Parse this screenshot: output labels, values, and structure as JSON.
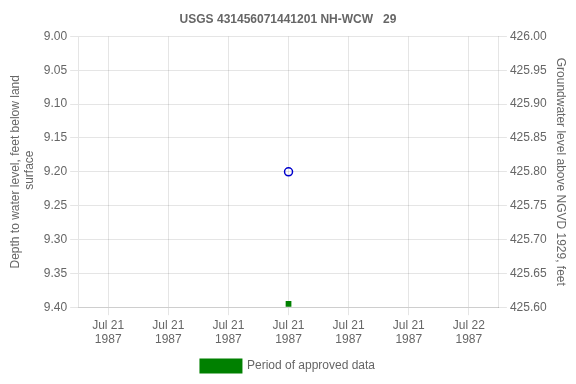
{
  "chart_data": {
    "type": "scatter",
    "title": "USGS 431456071441201 NH-WCW   29",
    "ylabel": "Depth to water level, feet below land\n surface",
    "y2label": "Groundwater level above NGVD 1929, feet",
    "categories": [
      "Jul 21\n1987",
      "Jul 21\n1987",
      "Jul 21\n1987",
      "Jul 21\n1987",
      "Jul 21\n1987",
      "Jul 21\n1987",
      "Jul 22\n1987"
    ],
    "series": [
      {
        "color": "#0000cc",
        "marker": "open_circle",
        "values": [
          null,
          null,
          null,
          9.2,
          null,
          null,
          null
        ]
      },
      {
        "name": "Period of approved data",
        "color": "#008000",
        "marker": "filled_square",
        "values": [
          null,
          null,
          null,
          9.395,
          null,
          null,
          null
        ]
      }
    ],
    "ylim": [
      9.4,
      9.0
    ],
    "yticks": [
      {
        "value": 9.0,
        "label": "9.00"
      },
      {
        "value": 9.05,
        "label": "9.05"
      },
      {
        "value": 9.1,
        "label": "9.10"
      },
      {
        "value": 9.15,
        "label": "9.15"
      },
      {
        "value": 9.2,
        "label": "9.20"
      },
      {
        "value": 9.25,
        "label": "9.25"
      },
      {
        "value": 9.3,
        "label": "9.30"
      },
      {
        "value": 9.35,
        "label": "9.35"
      },
      {
        "value": 9.4,
        "label": "9.40"
      }
    ],
    "y2lim": [
      425.6,
      426.0
    ],
    "y2ticks": [
      {
        "value": 425.6,
        "label": "425.60"
      },
      {
        "value": 425.65,
        "label": "425.65"
      },
      {
        "value": 425.7,
        "label": "425.70"
      },
      {
        "value": 425.75,
        "label": "425.75"
      },
      {
        "value": 425.8,
        "label": "425.80"
      },
      {
        "value": 425.85,
        "label": "425.85"
      },
      {
        "value": 425.9,
        "label": "425.90"
      },
      {
        "value": 425.95,
        "label": "425.95"
      },
      {
        "value": 426.0,
        "label": "426.00"
      }
    ],
    "grid": true,
    "legend": "bottom"
  }
}
